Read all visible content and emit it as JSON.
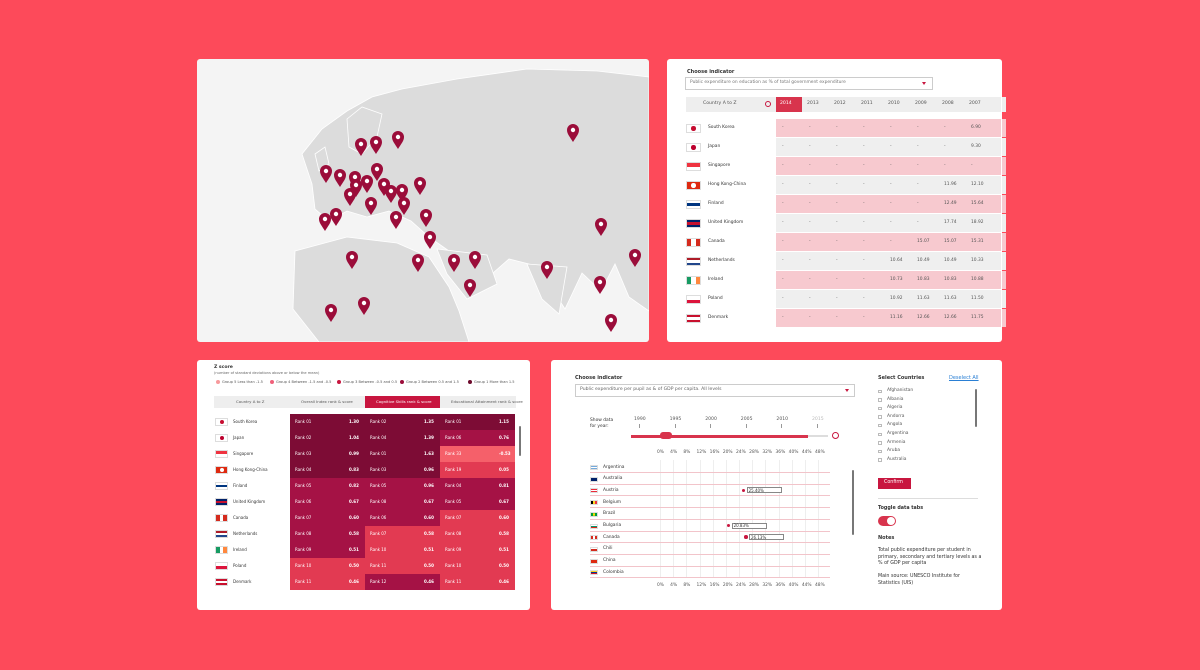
{
  "indicator_table": {
    "label": "Choose indicator",
    "dropdown": "Public expenditure on education as % of total government expenditure",
    "sort": "Country A to Z",
    "years": [
      "2014",
      "2013",
      "2012",
      "2011",
      "2010",
      "2009",
      "2008",
      "2007"
    ],
    "rows": [
      {
        "country": "South Korea",
        "values": [
          "-",
          "-",
          "-",
          "-",
          "-",
          "-",
          "-",
          "6.90"
        ]
      },
      {
        "country": "Japan",
        "values": [
          "-",
          "-",
          "-",
          "-",
          "-",
          "-",
          "-",
          "9.30"
        ]
      },
      {
        "country": "Singapore",
        "values": [
          "-",
          "-",
          "-",
          "-",
          "-",
          "-",
          "-",
          "-"
        ]
      },
      {
        "country": "Hong Kong-China",
        "values": [
          "-",
          "-",
          "-",
          "-",
          "-",
          "-",
          "11.96",
          "12.10"
        ]
      },
      {
        "country": "Finland",
        "values": [
          "-",
          "-",
          "-",
          "-",
          "-",
          "-",
          "12.49",
          "15.64"
        ]
      },
      {
        "country": "United Kingdom",
        "values": [
          "-",
          "-",
          "-",
          "-",
          "-",
          "-",
          "17.74",
          "18.92"
        ]
      },
      {
        "country": "Canada",
        "values": [
          "-",
          "-",
          "-",
          "-",
          "-",
          "15.07",
          "15.07",
          "15.31"
        ]
      },
      {
        "country": "Netherlands",
        "values": [
          "-",
          "-",
          "-",
          "-",
          "10.64",
          "10.49",
          "10.49",
          "10.33"
        ]
      },
      {
        "country": "Ireland",
        "values": [
          "-",
          "-",
          "-",
          "-",
          "10.73",
          "10.83",
          "10.83",
          "10.88"
        ]
      },
      {
        "country": "Poland",
        "values": [
          "-",
          "-",
          "-",
          "-",
          "10.92",
          "11.63",
          "11.63",
          "11.50"
        ]
      },
      {
        "country": "Denmark",
        "values": [
          "-",
          "-",
          "-",
          "-",
          "11.16",
          "12.66",
          "12.66",
          "11.75"
        ]
      }
    ]
  },
  "zscore_table": {
    "title": "Z score",
    "subtitle": "(number of standard deviations above or below the mean)",
    "legend": [
      "Group 5 Less than -1.5",
      "Group 4 Between -1.5 and -0.5",
      "Group 3 Between -0.5 and 0.5",
      "Group 2 Between 0.5 and 1.5",
      "Group 1 More than 1.5"
    ],
    "tabs": [
      "Country A to Z",
      "Overall Index rank & score",
      "Cognitive Skills rank & score",
      "Educational Attainment rank & score"
    ],
    "rows": [
      {
        "country": "South Korea",
        "cells": [
          [
            "Rank 01",
            "1.30"
          ],
          [
            "Rank 02",
            "1.35"
          ],
          [
            "Rank 01",
            "1.15"
          ]
        ]
      },
      {
        "country": "Japan",
        "cells": [
          [
            "Rank 02",
            "1.04"
          ],
          [
            "Rank 04",
            "1.39"
          ],
          [
            "Rank 06",
            "0.76"
          ]
        ]
      },
      {
        "country": "Singapore",
        "cells": [
          [
            "Rank 03",
            "0.99"
          ],
          [
            "Rank 01",
            "1.63"
          ],
          [
            "Rank 33",
            "-0.53"
          ]
        ]
      },
      {
        "country": "Hong Kong-China",
        "cells": [
          [
            "Rank 04",
            "0.83"
          ],
          [
            "Rank 03",
            "0.96"
          ],
          [
            "Rank 19",
            "0.05"
          ]
        ]
      },
      {
        "country": "Finland",
        "cells": [
          [
            "Rank 05",
            "0.82"
          ],
          [
            "Rank 05",
            "0.96"
          ],
          [
            "Rank 04",
            "0.81"
          ]
        ]
      },
      {
        "country": "United Kingdom",
        "cells": [
          [
            "Rank 06",
            "0.67"
          ],
          [
            "Rank 08",
            "0.67"
          ],
          [
            "Rank 05",
            "0.67"
          ]
        ]
      },
      {
        "country": "Canada",
        "cells": [
          [
            "Rank 07",
            "0.60"
          ],
          [
            "Rank 06",
            "0.60"
          ],
          [
            "Rank 07",
            "0.60"
          ]
        ]
      },
      {
        "country": "Netherlands",
        "cells": [
          [
            "Rank 08",
            "0.58"
          ],
          [
            "Rank 07",
            "0.58"
          ],
          [
            "Rank 08",
            "0.58"
          ]
        ]
      },
      {
        "country": "Ireland",
        "cells": [
          [
            "Rank 09",
            "0.51"
          ],
          [
            "Rank 10",
            "0.51"
          ],
          [
            "Rank 09",
            "0.51"
          ]
        ]
      },
      {
        "country": "Poland",
        "cells": [
          [
            "Rank 10",
            "0.50"
          ],
          [
            "Rank 11",
            "0.50"
          ],
          [
            "Rank 10",
            "0.50"
          ]
        ]
      },
      {
        "country": "Denmark",
        "cells": [
          [
            "Rank 11",
            "0.46"
          ],
          [
            "Rank 12",
            "0.46"
          ],
          [
            "Rank 11",
            "0.46"
          ]
        ]
      }
    ]
  },
  "expenditure_panel": {
    "label": "Choose indicator",
    "dropdown": "Public expenditure per pupil as & of GDP per capita. All levels",
    "year_label": "Show data for year:",
    "years": [
      1990,
      1995,
      2000,
      2005,
      2010,
      2015
    ],
    "chart_data": {
      "type": "dot",
      "categories": [
        "Argentina",
        "Australia",
        "Austria",
        "Belgium",
        "Brazil",
        "Bulgaria",
        "Canada",
        "Chili",
        "China",
        "Colombia"
      ],
      "values": [
        null,
        null,
        25.4,
        null,
        null,
        20.83,
        26.13,
        null,
        null,
        null
      ],
      "value_labels": [
        null,
        null,
        "25.40%",
        null,
        null,
        "20.83%",
        "26.13%",
        null,
        null,
        null
      ],
      "color": "#c8163f",
      "xlim": [
        0,
        48
      ],
      "xticks": [
        {
          "value": 0,
          "label": "0%"
        },
        {
          "value": 4,
          "label": "4%"
        },
        {
          "value": 8,
          "label": "8%"
        },
        {
          "value": 12,
          "label": "12%"
        },
        {
          "value": 16,
          "label": "16%"
        },
        {
          "value": 20,
          "label": "20%"
        },
        {
          "value": 24,
          "label": "24%"
        },
        {
          "value": 28,
          "label": "28%"
        },
        {
          "value": 32,
          "label": "32%"
        },
        {
          "value": 36,
          "label": "36%"
        },
        {
          "value": 40,
          "label": "40%"
        },
        {
          "value": 44,
          "label": "44%"
        },
        {
          "value": 48,
          "label": "48%"
        }
      ]
    },
    "select_title": "Select Countries",
    "deselect": "Deselect All",
    "countries": [
      "Afghanistan",
      "Albania",
      "Algeria",
      "Andorra",
      "Angola",
      "Argentina",
      "Armenia",
      "Aruba",
      "Australia"
    ],
    "confirm": "Confirm",
    "toggle_label": "Toggle data tabs",
    "notes_title": "Notes",
    "notes": "Total public expenditure per student in primary, secondary and tertiary levels as a % of GDP per capita",
    "source": "Main source: UNESCO Institute for Statistics (UIS)"
  }
}
